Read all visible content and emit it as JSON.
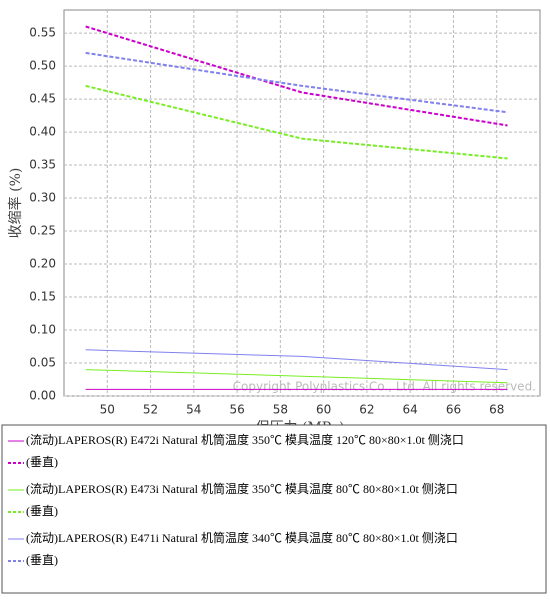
{
  "chart_data": {
    "type": "line",
    "xlabel": "保压力 (MPa)",
    "ylabel": "收缩率 (%)",
    "watermark": "Copyright Polyplastics Co., Ltd. All rights reserved.",
    "x": [
      49,
      59,
      68.5
    ],
    "xlim": [
      48,
      70
    ],
    "xticks": [
      50,
      52,
      54,
      56,
      58,
      60,
      62,
      64,
      66,
      68
    ],
    "ylim": [
      0,
      0.585
    ],
    "yticks": [
      {
        "value": 0,
        "label": "0.00"
      },
      {
        "value": 0.05,
        "label": "0.05"
      },
      {
        "value": 0.1,
        "label": "0.10"
      },
      {
        "value": 0.15,
        "label": "0.15"
      },
      {
        "value": 0.2,
        "label": "0.20"
      },
      {
        "value": 0.25,
        "label": "0.25"
      },
      {
        "value": 0.3,
        "label": "0.30"
      },
      {
        "value": 0.35,
        "label": "0.35"
      },
      {
        "value": 0.4,
        "label": "0.40"
      },
      {
        "value": 0.45,
        "label": "0.45"
      },
      {
        "value": 0.5,
        "label": "0.50"
      },
      {
        "value": 0.55,
        "label": "0.55"
      }
    ],
    "grid": true,
    "series": [
      {
        "name": "(流动)LAPEROS(R) E472i Natural 机筒温度 350℃ 模具温度 120℃ 80×80×1.0t 侧浇口",
        "color": "#cc00cc",
        "dashed": false,
        "values": [
          0.01,
          0.01,
          0.01
        ]
      },
      {
        "name": "(垂直)",
        "color": "#cc00cc",
        "dashed": true,
        "values": [
          0.56,
          0.46,
          0.41
        ]
      },
      {
        "name": "(流动)LAPEROS(R) E473i Natural 机筒温度 350℃ 模具温度 80℃ 80×80×1.0t 侧浇口",
        "color": "#77ee22",
        "dashed": false,
        "values": [
          0.04,
          0.03,
          0.02
        ]
      },
      {
        "name": "(垂直)",
        "color": "#77ee22",
        "dashed": true,
        "values": [
          0.47,
          0.39,
          0.36
        ]
      },
      {
        "name": "(流动)LAPEROS(R) E471i Natural 机筒温度 340℃ 模具温度 80℃ 80×80×1.0t 侧浇口",
        "color": "#8080ee",
        "dashed": false,
        "values": [
          0.07,
          0.06,
          0.04
        ]
      },
      {
        "name": "(垂直)",
        "color": "#8080ee",
        "dashed": true,
        "values": [
          0.52,
          0.47,
          0.43
        ]
      }
    ]
  }
}
